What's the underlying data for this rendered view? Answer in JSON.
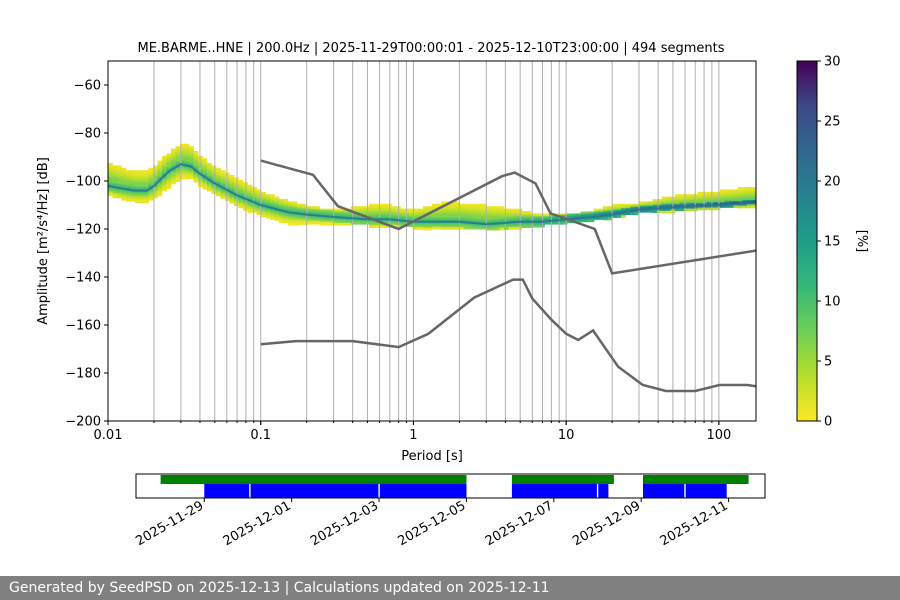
{
  "chart_data": [
    {
      "type": "heatmap",
      "title": "ME.BARME..HNE | 200.0Hz | 2025-11-29T00:00:01 - 2025-12-10T23:00:00 | 494 segments",
      "xlabel": "Period [s]",
      "ylabel": "Amplitude [m²/s⁴/Hz] [dB]",
      "x_scale": "log",
      "xlim": [
        0.01,
        175
      ],
      "ylim": [
        -200,
        -50
      ],
      "x_ticks": [
        0.01,
        0.1,
        1,
        10,
        100
      ],
      "x_tick_labels": [
        "0.01",
        "0.1",
        "1",
        "10",
        "100"
      ],
      "y_ticks": [
        -200,
        -180,
        -160,
        -140,
        -120,
        -100,
        -80,
        -60
      ],
      "y_tick_labels": [
        "−200",
        "−180",
        "−160",
        "−140",
        "−120",
        "−100",
        "−80",
        "−60"
      ],
      "grid_x_periods": [
        0.02,
        0.03,
        0.04,
        0.05,
        0.06,
        0.07,
        0.08,
        0.09,
        0.1,
        0.2,
        0.3,
        0.4,
        0.5,
        0.6,
        0.7,
        0.8,
        0.9,
        1,
        2,
        3,
        4,
        5,
        6,
        7,
        8,
        9,
        10,
        20,
        30,
        40,
        50,
        60,
        70,
        80,
        90,
        100
      ],
      "colorbar": {
        "label": "[%]",
        "range": [
          0,
          30
        ],
        "ticks": [
          0,
          5,
          10,
          15,
          20,
          25,
          30
        ],
        "colormap": "viridis_r"
      },
      "mode_curve": {
        "x": [
          0.01,
          0.012,
          0.015,
          0.018,
          0.02,
          0.025,
          0.03,
          0.035,
          0.04,
          0.05,
          0.07,
          0.1,
          0.15,
          0.2,
          0.3,
          0.5,
          0.7,
          1,
          1.5,
          2,
          3,
          5,
          7,
          10,
          15,
          20,
          30,
          50,
          100,
          175
        ],
        "y": [
          -102,
          -103,
          -104,
          -104,
          -102,
          -96,
          -93,
          -94,
          -97,
          -101,
          -106,
          -110,
          -113,
          -114,
          -115,
          -116,
          -116,
          -117,
          -117,
          -117,
          -118,
          -117,
          -117,
          -116,
          -115,
          -114,
          -112,
          -111,
          -110,
          -109
        ]
      },
      "spread": {
        "lower": [
          -106,
          -108,
          -109,
          -109,
          -108,
          -103,
          -99,
          -99,
          -102,
          -106,
          -111,
          -115,
          -118,
          -118,
          -118,
          -119,
          -119,
          -120,
          -120,
          -120,
          -120,
          -120,
          -119,
          -118,
          -117,
          -116,
          -114,
          -113,
          -112,
          -111
        ],
        "upper": [
          -92,
          -94,
          -96,
          -96,
          -94,
          -88,
          -84,
          -85,
          -89,
          -94,
          -99,
          -104,
          -108,
          -110,
          -112,
          -110,
          -110,
          -112,
          -109,
          -109,
          -110,
          -112,
          -114,
          -114,
          -112,
          -110,
          -109,
          -106,
          -104,
          -102
        ]
      },
      "noise_models": [
        {
          "x": [
            0.1,
            0.17,
            0.4,
            0.8,
            1.25,
            2.5,
            4.5,
            5.2,
            6,
            8,
            10,
            12,
            15,
            21.9,
            31.6,
            45,
            70,
            101,
            154,
            175
          ],
          "y": [
            -168,
            -166.7,
            -166.7,
            -169.2,
            -163.7,
            -148.6,
            -141.1,
            -141.1,
            -149,
            -157.8,
            -163.7,
            -166.2,
            -162.3,
            -177.4,
            -184.9,
            -187.5,
            -187.5,
            -185,
            -185,
            -185.5
          ]
        },
        {
          "x": [
            0.1,
            0.22,
            0.32,
            0.8,
            3.8,
            4.6,
            6.3,
            7.9,
            15.4,
            20,
            175
          ],
          "y": [
            -91.5,
            -97.4,
            -110.5,
            -120,
            -98,
            -96.5,
            -101,
            -113.5,
            -120,
            -138.5,
            -129
          ]
        }
      ]
    },
    {
      "type": "timeline",
      "x_tick_labels": [
        "2025-11-29",
        "2025-12-01",
        "2025-12-03",
        "2025-12-05",
        "2025-12-07",
        "2025-12-09",
        "2025-12-11"
      ],
      "xlim": [
        "2025-11-27T10:30",
        "2025-12-11T20:00"
      ],
      "rows": [
        {
          "color": "#008000",
          "segments": [
            [
              "2025-11-28T00:00",
              "2025-12-05T00:00"
            ],
            [
              "2025-12-06T01:00",
              "2025-12-08T09:00"
            ],
            [
              "2025-12-09T01:00",
              "2025-12-11T11:00"
            ]
          ]
        },
        {
          "color": "#0000ff",
          "segments": [
            [
              "2025-11-29T00:00",
              "2025-12-05T00:00"
            ],
            [
              "2025-12-06T01:00",
              "2025-12-08T06:00"
            ],
            [
              "2025-12-09T01:00",
              "2025-12-10T23:00"
            ]
          ],
          "gaps": [
            "2025-11-30T01:00",
            "2025-12-03T00:00",
            "2025-12-08T00:00",
            "2025-12-10T00:00"
          ]
        }
      ]
    }
  ],
  "footer": {
    "text": "Generated by SeedPSD on 2025-12-13 | Calculations updated on 2025-12-11"
  },
  "colors": {
    "noise_model": "#666666",
    "grid": "#b0b0b0",
    "footer_bg": "#808080"
  }
}
